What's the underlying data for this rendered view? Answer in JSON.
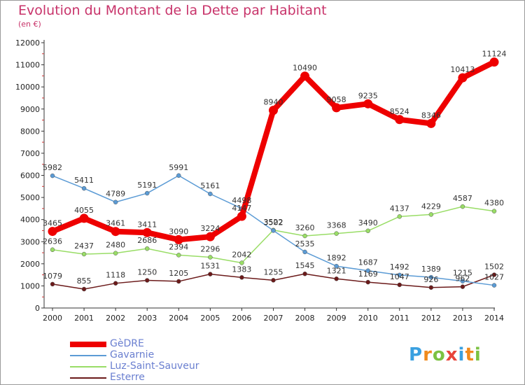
{
  "chart_data": {
    "type": "line",
    "title": "Evolution du Montant de la Dette par Habitant",
    "subtitle": "(en €)",
    "x": [
      "2000",
      "2001",
      "2002",
      "2003",
      "2004",
      "2005",
      "2006",
      "2007",
      "2008",
      "2009",
      "2010",
      "2011",
      "2012",
      "2013",
      "2014"
    ],
    "yticks": [
      0,
      1000,
      2000,
      3000,
      4000,
      5000,
      6000,
      7000,
      8000,
      9000,
      10000,
      11000,
      12000
    ],
    "ylim": [
      0,
      12000
    ],
    "grid": false,
    "legend_position": "bottom-left",
    "series": [
      {
        "name": "Esterre",
        "color": "#6b1a1a",
        "width": 1.5,
        "values": [
          1079,
          855,
          1118,
          1250,
          1205,
          1531,
          1383,
          1255,
          1545,
          1321,
          1169,
          1047,
          926,
          962,
          1502
        ]
      },
      {
        "name": "Luz-Saint-Sauveur",
        "color": "#99dd66",
        "width": 1.5,
        "values": [
          2636,
          2437,
          2480,
          2686,
          2394,
          2296,
          2042,
          3522,
          3260,
          3368,
          3490,
          4137,
          4229,
          4587,
          4380
        ]
      },
      {
        "name": "Gavarnie",
        "color": "#5b9bd5",
        "width": 1.5,
        "values": [
          5982,
          5411,
          4789,
          5191,
          5991,
          5161,
          4498,
          3502,
          2535,
          1892,
          1687,
          1492,
          1389,
          1215,
          1027
        ]
      },
      {
        "name": "GèDRE",
        "color": "#ee0000",
        "width": 8,
        "values": [
          3465,
          4055,
          3461,
          3411,
          3090,
          3224,
          4147,
          8940,
          10490,
          9058,
          9235,
          8524,
          8346,
          10413,
          11124
        ]
      }
    ]
  },
  "legend": {
    "items": [
      {
        "name": "GèDRE",
        "color": "#ee0000",
        "thickness": 8
      },
      {
        "name": "Gavarnie",
        "color": "#5b9bd5",
        "thickness": 2
      },
      {
        "name": "Luz-Saint-Sauveur",
        "color": "#99dd66",
        "thickness": 2
      },
      {
        "name": "Esterre",
        "color": "#6b1a1a",
        "thickness": 2
      }
    ]
  },
  "logo": {
    "letters": [
      "P",
      "r",
      "o",
      "x",
      "i",
      "t",
      "i"
    ],
    "colors": [
      "#3aa0e0",
      "#f08a1c",
      "#7cc242",
      "#e8443a",
      "#3aa0e0",
      "#f08a1c",
      "#7cc242"
    ]
  }
}
